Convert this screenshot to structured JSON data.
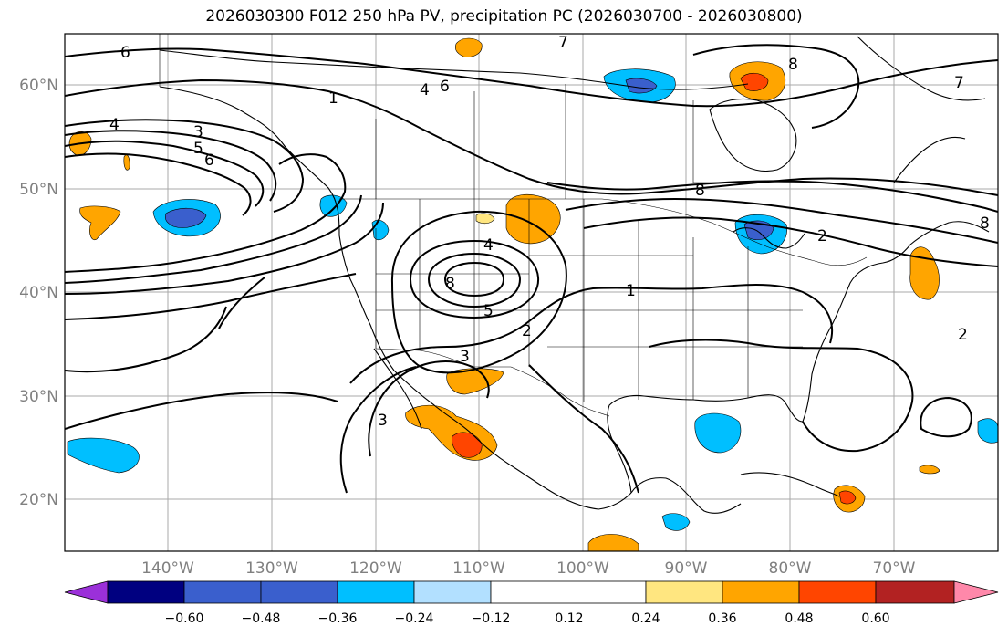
{
  "title": "2026030300 F012 250 hPa PV, precipitation PC (2026030700 - 2026030800)",
  "map": {
    "lat_labels": [
      "60°N",
      "50°N",
      "40°N",
      "30°N",
      "20°N"
    ],
    "lon_labels": [
      "140°W",
      "130°W",
      "120°W",
      "110°W",
      "100°W",
      "90°W",
      "80°W",
      "70°W"
    ],
    "extent": {
      "lon": [
        -150,
        -60
      ],
      "lat": [
        15,
        65
      ]
    },
    "gridline_color": "#a9a9a9"
  },
  "colorbar": {
    "tick_labels": [
      "−0.60",
      "−0.48",
      "−0.36",
      "−0.24",
      "−0.12",
      "0.12",
      "0.24",
      "0.36",
      "0.48",
      "0.60"
    ],
    "colors": [
      "#9b30d9",
      "#000080",
      "#3a5fcd",
      "#00bfff",
      "#b2e0ff",
      "#ffffff",
      "#ffe680",
      "#ffa500",
      "#ff4500",
      "#b22222",
      "#ff88aa"
    ]
  },
  "contour_labels": [
    "1",
    "2",
    "3",
    "4",
    "5",
    "6",
    "7",
    "8"
  ]
}
